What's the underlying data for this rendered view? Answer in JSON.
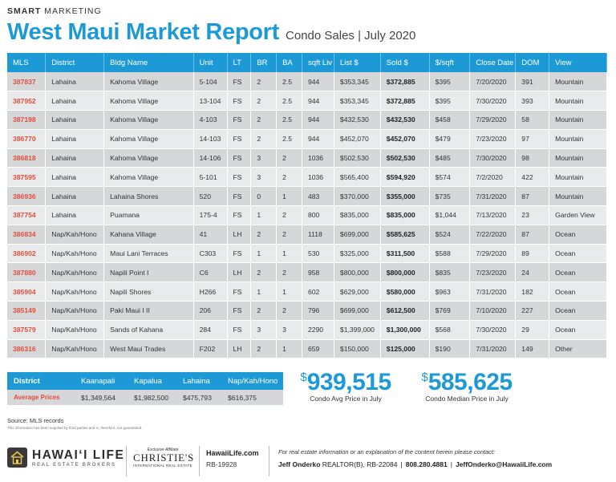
{
  "header": {
    "brand_bold": "SMART",
    "brand_rest": " MARKETING",
    "title": "West Maui Market Report",
    "subtitle": "Condo Sales  |  July 2020"
  },
  "table": {
    "columns": [
      "MLS",
      "District",
      "Bldg Name",
      "Unit",
      "LT",
      "BR",
      "BA",
      "sqft Liv",
      "List $",
      "Sold $",
      "$/sqft",
      "Close Date",
      "DOM",
      "View"
    ],
    "rows": [
      [
        "387837",
        "Lahaina",
        "Kahoma Village",
        "5-104",
        "FS",
        "2",
        "2.5",
        "944",
        "$353,345",
        "$372,885",
        "$395",
        "7/20/2020",
        "391",
        "Mountain"
      ],
      [
        "387952",
        "Lahaina",
        "Kahoma Village",
        "13-104",
        "FS",
        "2",
        "2.5",
        "944",
        "$353,345",
        "$372,885",
        "$395",
        "7/30/2020",
        "393",
        "Mountain"
      ],
      [
        "387198",
        "Lahaina",
        "Kahoma Village",
        "4-103",
        "FS",
        "2",
        "2.5",
        "944",
        "$432,530",
        "$432,530",
        "$458",
        "7/29/2020",
        "58",
        "Mountain"
      ],
      [
        "386770",
        "Lahaina",
        "Kahoma Village",
        "14-103",
        "FS",
        "2",
        "2.5",
        "944",
        "$452,070",
        "$452,070",
        "$479",
        "7/23/2020",
        "97",
        "Mountain"
      ],
      [
        "386818",
        "Lahaina",
        "Kahoma Village",
        "14-106",
        "FS",
        "3",
        "2",
        "1036",
        "$502,530",
        "$502,530",
        "$485",
        "7/30/2020",
        "98",
        "Mountain"
      ],
      [
        "387595",
        "Lahaina",
        "Kahoma Village",
        "5-101",
        "FS",
        "3",
        "2",
        "1036",
        "$565,400",
        "$594,920",
        "$574",
        "7/2/2020",
        "422",
        "Mountain"
      ],
      [
        "386936",
        "Lahaina",
        "Lahaina Shores",
        "520",
        "FS",
        "0",
        "1",
        "483",
        "$370,000",
        "$355,000",
        "$735",
        "7/31/2020",
        "87",
        "Mountain"
      ],
      [
        "387754",
        "Lahaina",
        "Puamana",
        "175-4",
        "FS",
        "1",
        "2",
        "800",
        "$835,000",
        "$835,000",
        "$1,044",
        "7/13/2020",
        "23",
        "Garden View"
      ],
      [
        "386834",
        "Nap/Kah/Hono",
        "Kahana Village",
        "41",
        "LH",
        "2",
        "2",
        "1118",
        "$699,000",
        "$585,625",
        "$524",
        "7/22/2020",
        "87",
        "Ocean"
      ],
      [
        "386902",
        "Nap/Kah/Hono",
        "Maui Lani Terraces",
        "C303",
        "FS",
        "1",
        "1",
        "530",
        "$325,000",
        "$311,500",
        "$588",
        "7/29/2020",
        "89",
        "Ocean"
      ],
      [
        "387880",
        "Nap/Kah/Hono",
        "Napili Point I",
        "C6",
        "LH",
        "2",
        "2",
        "958",
        "$800,000",
        "$800,000",
        "$835",
        "7/23/2020",
        "24",
        "Ocean"
      ],
      [
        "385904",
        "Nap/Kah/Hono",
        "Napili Shores",
        "H266",
        "FS",
        "1",
        "1",
        "602",
        "$629,000",
        "$580,000",
        "$963",
        "7/31/2020",
        "182",
        "Ocean"
      ],
      [
        "385149",
        "Nap/Kah/Hono",
        "Paki Maui I II",
        "206",
        "FS",
        "2",
        "2",
        "796",
        "$699,000",
        "$612,500",
        "$769",
        "7/10/2020",
        "227",
        "Ocean"
      ],
      [
        "387579",
        "Nap/Kah/Hono",
        "Sands of Kahana",
        "284",
        "FS",
        "3",
        "3",
        "2290",
        "$1,399,000",
        "$1,300,000",
        "$568",
        "7/30/2020",
        "29",
        "Ocean"
      ],
      [
        "386316",
        "Nap/Kah/Hono",
        "West Maui Trades",
        "F202",
        "LH",
        "2",
        "1",
        "659",
        "$150,000",
        "$125,000",
        "$190",
        "7/31/2020",
        "149",
        "Other"
      ]
    ]
  },
  "averages": {
    "header": [
      "District",
      "Kaanapali",
      "Kapalua",
      "Lahaina",
      "Nap/Kah/Hono"
    ],
    "row": [
      "Average Prices",
      "$1,349,564",
      "$1,982,500",
      "$475,793",
      "$616,375"
    ]
  },
  "stats": {
    "avg": {
      "symbol": "$",
      "value": "939,515",
      "caption": "Condo Avg Price in July"
    },
    "median": {
      "symbol": "$",
      "value": "585,625",
      "caption": "Condo Median Price in July"
    }
  },
  "source": "Source: MLS records",
  "disclaimer": "This information has been supplied by third parties and is, therefore, not guaranteed.",
  "footer": {
    "logo_name": "HAWAIʻI LIFE",
    "logo_sub": "REAL ESTATE BROKERS",
    "affiliate_label": "Exclusive Affiliate",
    "affiliate_name": "CHRISTIE'S",
    "affiliate_sub": "INTERNATIONAL REAL ESTATE",
    "website": "HawaiiLife.com",
    "license": "RB-19928",
    "contact_intro": "For real estate information or an explanation of the content herein please contact:",
    "agent_name": "Jeff Onderko",
    "agent_title": " REALTOR(B), RB-22084",
    "phone": "808.280.4881",
    "email": "JeffOnderko@HawaiiLife.com"
  },
  "colors": {
    "accent": "#1d9ad6",
    "mls": "#e0503c",
    "row_dark": "#d6d7d9",
    "row_light": "#e9eaeb"
  }
}
